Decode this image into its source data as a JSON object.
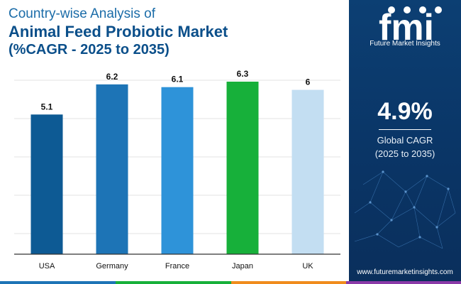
{
  "header": {
    "line1": "Country-wise Analysis of",
    "line2": "Animal Feed Probiotic Market",
    "line3": "(%CAGR - 2025 to 2035)"
  },
  "chart_data": {
    "type": "bar",
    "categories": [
      "USA",
      "Germany",
      "France",
      "Japan",
      "UK"
    ],
    "values": [
      5.1,
      6.2,
      6.1,
      6.3,
      6
    ],
    "value_labels": [
      "5.1",
      "6.2",
      "6.1",
      "6.3",
      "6"
    ],
    "bar_colors": [
      "#0d5a94",
      "#1d74b6",
      "#2e93d9",
      "#17b03a",
      "#c3def2"
    ],
    "ylim": [
      0,
      7
    ],
    "grid": true,
    "title": "",
    "xlabel": "",
    "ylabel": ""
  },
  "side_panel": {
    "logo_text": "fmi",
    "logo_subtitle": "Future Market Insights",
    "cagr_value": "4.9%",
    "cagr_label_line1": "Global CAGR",
    "cagr_label_line2": "(2025 to 2035)",
    "website": "www.futuremarketinsights.com"
  },
  "colors": {
    "title_light": "#1b6ca8",
    "title_dark": "#0b4f8a",
    "panel_bg": "#0c3f73",
    "footer": [
      "#1d74b6",
      "#17b03a",
      "#f08c1c",
      "#8a3aa8"
    ]
  }
}
